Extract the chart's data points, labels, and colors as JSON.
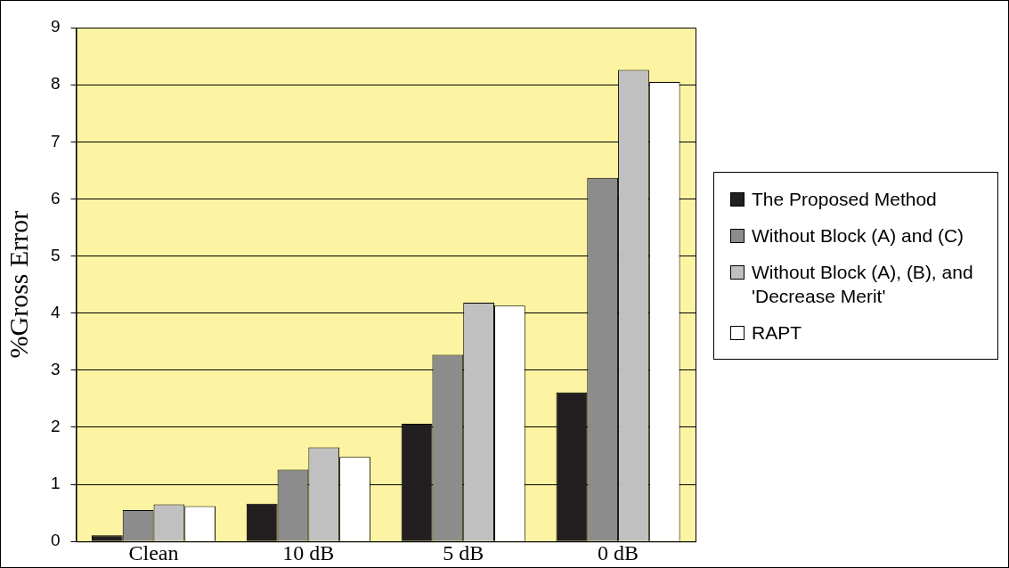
{
  "chart_data": {
    "type": "bar",
    "ylabel": "%Gross Error",
    "categories": [
      "Clean",
      "10 dB",
      "5 dB",
      "0 dB"
    ],
    "series": [
      {
        "name": "The Proposed Method",
        "color": "#231f20",
        "values": [
          0.11,
          0.66,
          2.06,
          2.61
        ]
      },
      {
        "name": "Without Block (A) and (C)",
        "color": "#8c8c8c",
        "values": [
          0.55,
          1.26,
          3.27,
          6.37
        ]
      },
      {
        "name": "Without Block (A), (B), and 'Decrease Merit'",
        "color": "#c0c0c0",
        "values": [
          0.65,
          1.65,
          4.18,
          8.26
        ]
      },
      {
        "name": "RAPT",
        "color": "#ffffff",
        "values": [
          0.62,
          1.48,
          4.13,
          8.05
        ]
      }
    ],
    "ylim": [
      0,
      9
    ],
    "yticks": [
      0,
      1,
      2,
      3,
      4,
      5,
      6,
      7,
      8,
      9
    ],
    "grid": "y",
    "legend": "right"
  }
}
